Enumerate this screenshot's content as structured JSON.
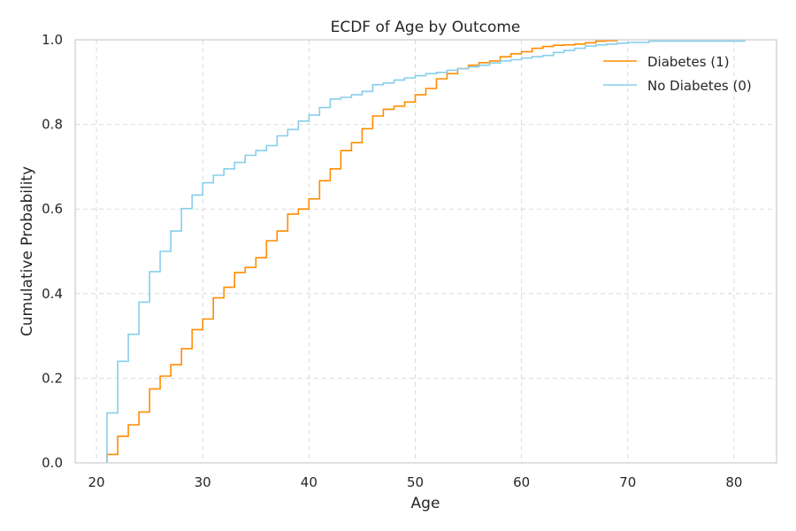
{
  "chart_data": {
    "type": "line",
    "title": "ECDF of Age by Outcome",
    "xlabel": "Age",
    "ylabel": "Cumulative Probability",
    "xlim": [
      18,
      84
    ],
    "ylim": [
      0,
      1.0
    ],
    "xticks": [
      20,
      30,
      40,
      50,
      60,
      70,
      80
    ],
    "yticks": [
      0.0,
      0.2,
      0.4,
      0.6,
      0.8,
      1.0
    ],
    "tick_labels_y": [
      "0.0",
      "0.2",
      "0.4",
      "0.6",
      "0.8",
      "1.0"
    ],
    "grid": true,
    "legend_position": "top-right",
    "step": "post",
    "series": [
      {
        "name": "Diabetes (1)",
        "color": "#ff8c00",
        "x": [
          21,
          22,
          23,
          24,
          25,
          26,
          27,
          28,
          29,
          30,
          31,
          32,
          33,
          34,
          35,
          36,
          37,
          38,
          39,
          40,
          41,
          42,
          43,
          44,
          45,
          46,
          47,
          48,
          49,
          50,
          51,
          52,
          53,
          54,
          55,
          56,
          57,
          58,
          59,
          60,
          61,
          62,
          63,
          64,
          65,
          66,
          67,
          68,
          69
        ],
        "y": [
          0.02,
          0.063,
          0.09,
          0.12,
          0.175,
          0.205,
          0.232,
          0.27,
          0.315,
          0.34,
          0.39,
          0.415,
          0.45,
          0.462,
          0.485,
          0.525,
          0.548,
          0.588,
          0.6,
          0.624,
          0.667,
          0.695,
          0.738,
          0.757,
          0.79,
          0.82,
          0.836,
          0.843,
          0.853,
          0.87,
          0.885,
          0.908,
          0.92,
          0.932,
          0.94,
          0.946,
          0.95,
          0.96,
          0.967,
          0.972,
          0.98,
          0.984,
          0.987,
          0.988,
          0.99,
          0.993,
          0.997,
          0.998,
          1.0
        ]
      },
      {
        "name": "No Diabetes (0)",
        "color": "#87ceeb",
        "x": [
          21,
          22,
          23,
          24,
          25,
          26,
          27,
          28,
          29,
          30,
          31,
          32,
          33,
          34,
          35,
          36,
          37,
          38,
          39,
          40,
          41,
          42,
          43,
          44,
          45,
          46,
          47,
          48,
          49,
          50,
          51,
          52,
          53,
          54,
          55,
          56,
          57,
          58,
          59,
          60,
          61,
          62,
          63,
          64,
          65,
          66,
          67,
          68,
          69,
          70,
          72,
          81
        ],
        "y": [
          0.118,
          0.24,
          0.304,
          0.38,
          0.452,
          0.5,
          0.548,
          0.601,
          0.633,
          0.662,
          0.68,
          0.695,
          0.71,
          0.727,
          0.738,
          0.75,
          0.773,
          0.788,
          0.808,
          0.822,
          0.84,
          0.86,
          0.864,
          0.87,
          0.878,
          0.894,
          0.898,
          0.905,
          0.91,
          0.915,
          0.92,
          0.923,
          0.928,
          0.932,
          0.936,
          0.94,
          0.945,
          0.95,
          0.953,
          0.957,
          0.96,
          0.963,
          0.97,
          0.975,
          0.98,
          0.985,
          0.988,
          0.99,
          0.992,
          0.994,
          0.997,
          1.0
        ]
      }
    ]
  }
}
